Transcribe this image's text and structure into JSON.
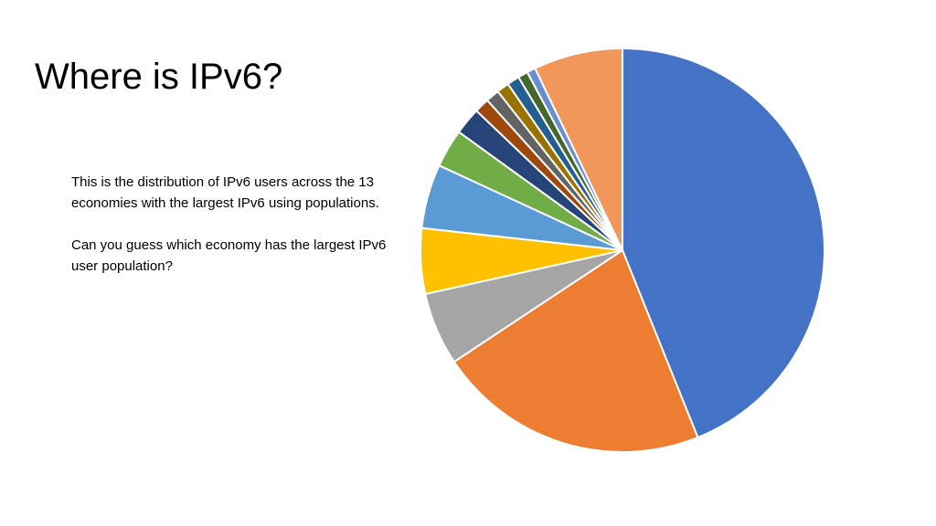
{
  "slide": {
    "title": "Where is IPv6?",
    "paragraphs": [
      "This is the distribution of IPv6 users across the 13 economies with the largest IPv6 using populations.",
      "Can you guess which economy has the largest IPv6 user population?"
    ]
  },
  "chart_data": {
    "type": "pie",
    "title": "",
    "legend": "none",
    "data_labels": "none",
    "start_angle": "12 o'clock",
    "direction": "clockwise",
    "slices": [
      {
        "value": 44.4,
        "color": "#4472C4"
      },
      {
        "value": 22.0,
        "color": "#ED7D31"
      },
      {
        "value": 5.9,
        "color": "#A5A5A5"
      },
      {
        "value": 5.3,
        "color": "#FFC000"
      },
      {
        "value": 5.2,
        "color": "#5B9BD5"
      },
      {
        "value": 3.1,
        "color": "#70AD47"
      },
      {
        "value": 2.2,
        "color": "#264478"
      },
      {
        "value": 1.2,
        "color": "#9E480E"
      },
      {
        "value": 1.1,
        "color": "#636363"
      },
      {
        "value": 1.0,
        "color": "#997300"
      },
      {
        "value": 1.0,
        "color": "#255E91"
      },
      {
        "value": 0.8,
        "color": "#43682B"
      },
      {
        "value": 0.7,
        "color": "#698ED0"
      },
      {
        "value": 7.2,
        "color": "#F1975A"
      }
    ]
  }
}
